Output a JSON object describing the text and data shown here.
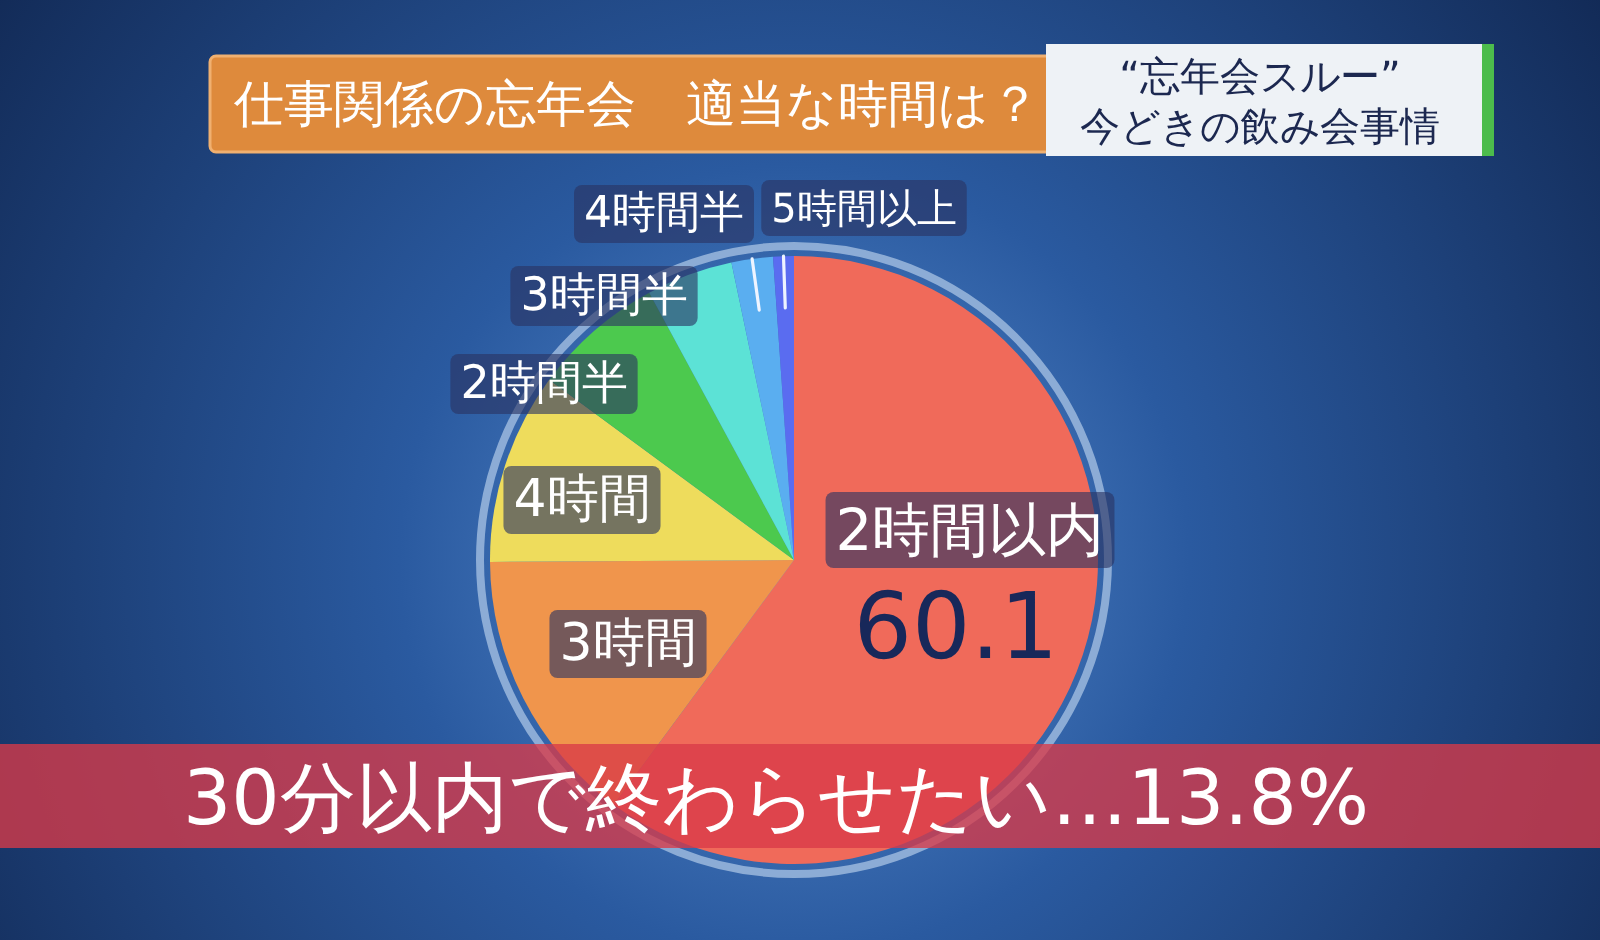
{
  "chart_data": {
    "type": "pie",
    "title": "仕事関係の忘年会　適当な時間は？",
    "subtitle": "“忘年会スルー”\n今どきの飲み会事情",
    "categories": [
      "2時間以内",
      "3時間",
      "4時間",
      "2時間半",
      "3時間半",
      "4時間半",
      "5時間以上"
    ],
    "values": [
      60.1,
      14.8,
      10.2,
      7.0,
      4.6,
      2.2,
      1.1
    ],
    "colors": [
      "#f06a5a",
      "#f0954c",
      "#eedc5c",
      "#4cc94e",
      "#5ce2d6",
      "#5aaef0",
      "#5a6cf0"
    ],
    "value_labels": [
      "60.1",
      null,
      null,
      null,
      null,
      null,
      null
    ],
    "annotations": [
      "30分以内で終わらせたい…13.8%"
    ]
  }
}
